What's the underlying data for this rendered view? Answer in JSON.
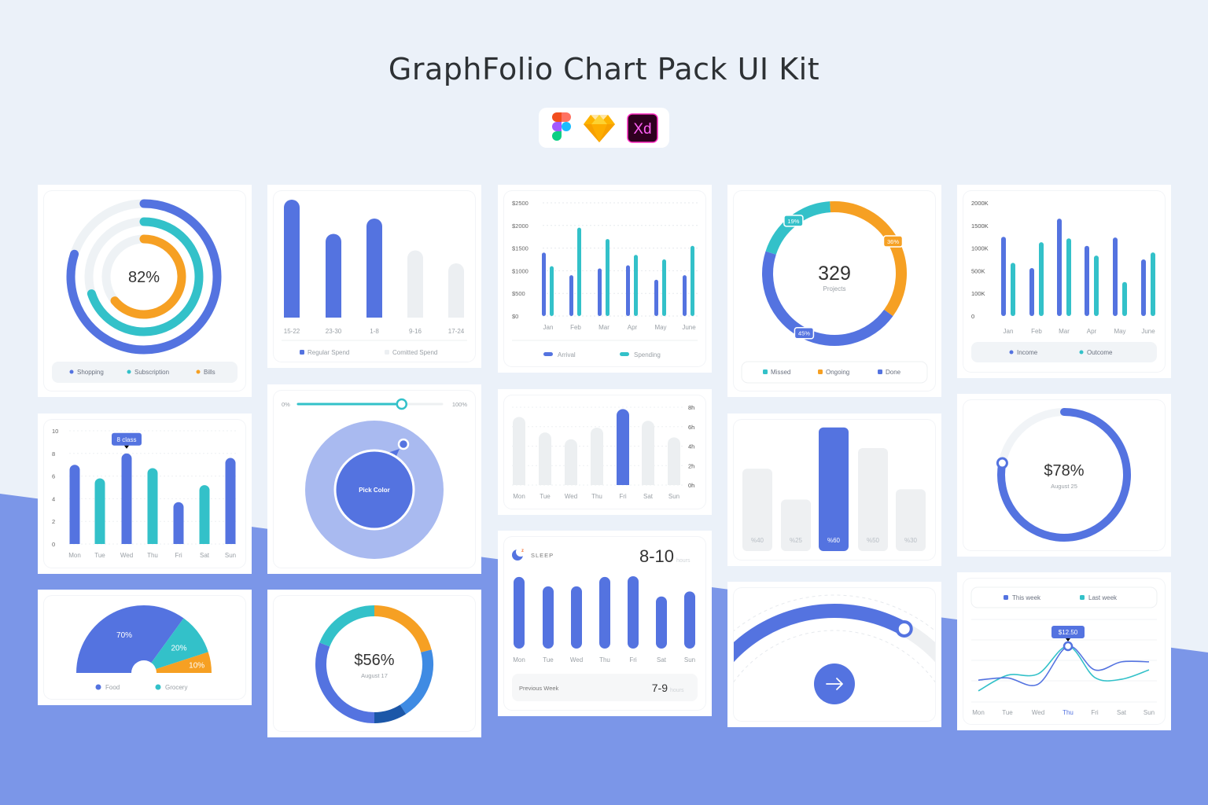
{
  "header": {
    "title": "GraphFolio Chart Pack UI Kit",
    "tool_icons": [
      "figma-icon",
      "sketch-icon",
      "adobe-xd-icon"
    ],
    "xd_label": "Xd"
  },
  "colors": {
    "blue": "#5473e0",
    "teal": "#33c1c9",
    "orange": "#f6a023",
    "track": "#eef1f4",
    "background": "#ebf1f9",
    "band": "#7b96e8"
  },
  "widgets": {
    "color_picker": {
      "min_label": "0%",
      "max_label": "100%",
      "slider_value_percent": 72,
      "button_label": "Pick Color"
    },
    "arc_gauge": {
      "value_fraction": 0.79,
      "button_icon": "arrow-right-icon"
    }
  },
  "chart_data": [
    {
      "type": "radial",
      "center_label": "82%",
      "series": [
        {
          "name": "Shopping",
          "value": 80,
          "color": "#5473e0"
        },
        {
          "name": "Subscription",
          "value": 70,
          "color": "#33c1c9"
        },
        {
          "name": "Bills",
          "value": 64,
          "color": "#f6a023"
        }
      ],
      "legend": "bottom"
    },
    {
      "type": "bar",
      "categories": [
        "15-22",
        "23-30",
        "1-8",
        "9-16",
        "17-24"
      ],
      "values": [
        100,
        71,
        84,
        57,
        46
      ],
      "bar_series": [
        0,
        0,
        0,
        1,
        1
      ],
      "series": [
        {
          "name": "Regular Spend",
          "color": "#5473e0"
        },
        {
          "name": "Comitted Spend",
          "color": "#eceff2"
        }
      ],
      "legend": "bottom"
    },
    {
      "type": "bar",
      "categories": [
        "Jan",
        "Feb",
        "Mar",
        "Apr",
        "May",
        "June"
      ],
      "ylim": [
        0,
        2500
      ],
      "yticks": [
        "$0",
        "$500",
        "$1000",
        "$1500",
        "$2000",
        "$2500"
      ],
      "grid": true,
      "series": [
        {
          "name": "Arrival",
          "values": [
            1400,
            900,
            1050,
            1120,
            800,
            900
          ],
          "color": "#5473e0"
        },
        {
          "name": "Spending",
          "values": [
            1100,
            1950,
            1700,
            1350,
            1250,
            1550
          ],
          "color": "#33c1c9"
        }
      ],
      "legend": "bottom"
    },
    {
      "type": "pie",
      "donut": true,
      "center_value": "329",
      "center_label": "Projects",
      "slices": [
        {
          "name": "Missed",
          "value": 19,
          "label": "19%",
          "color": "#33c1c9"
        },
        {
          "name": "Ongoing",
          "value": 36,
          "label": "36%",
          "color": "#f6a023"
        },
        {
          "name": "Done",
          "value": 45,
          "label": "45%",
          "color": "#5473e0"
        }
      ],
      "legend": "bottom"
    },
    {
      "type": "bar",
      "categories": [
        "Jan",
        "Feb",
        "Mar",
        "Apr",
        "May",
        "June"
      ],
      "yticks": [
        "0",
        "100K",
        "500K",
        "1000K",
        "1500K",
        "2000K"
      ],
      "ytick_values": [
        0,
        100,
        500,
        1000,
        1500,
        2000
      ],
      "unit": "K",
      "series": [
        {
          "name": "Income",
          "values": [
            1250,
            560,
            1650,
            1050,
            1235,
            750
          ],
          "color": "#5473e0"
        },
        {
          "name": "Outcome",
          "values": [
            675,
            1130,
            1215,
            835,
            300,
            905
          ],
          "color": "#33c1c9"
        }
      ],
      "legend": "bottom"
    },
    {
      "type": "bar",
      "categories": [
        "Mon",
        "Tue",
        "Wed",
        "Thu",
        "Fri",
        "Sat",
        "Sun"
      ],
      "ylim": [
        0,
        10
      ],
      "yticks": [
        "0",
        "2",
        "4",
        "6",
        "8",
        "10"
      ],
      "grid": true,
      "values": [
        7,
        5.8,
        8,
        6.7,
        3.7,
        5.2,
        7.6
      ],
      "bar_colors": [
        "#5473e0",
        "#33c1c9",
        "#5473e0",
        "#33c1c9",
        "#5473e0",
        "#33c1c9",
        "#5473e0"
      ],
      "annotation": "8 class",
      "highlight_index": 2
    },
    {
      "type": "bar",
      "categories": [
        "Mon",
        "Tue",
        "Wed",
        "Thu",
        "Fri",
        "Sat",
        "Sun"
      ],
      "ylim": [
        0,
        8
      ],
      "yticks": [
        "0h",
        "2h",
        "4h",
        "6h",
        "8h"
      ],
      "grid": true,
      "values": [
        6.6,
        5.0,
        4.3,
        5.5,
        7.4,
        6.2,
        4.5
      ],
      "highlight_index": 4
    },
    {
      "type": "bar",
      "categories": [
        "%40",
        "%25",
        "%60",
        "%50",
        "%30"
      ],
      "values": [
        40,
        25,
        60,
        50,
        30
      ],
      "highlight_index": 2
    },
    {
      "type": "pie",
      "progress_ring": true,
      "value": 78,
      "center_value": "$78%",
      "center_label": "August 25"
    },
    {
      "type": "pie",
      "half": true,
      "slices": [
        {
          "name": "Food",
          "value": 70,
          "label": "70%",
          "color": "#5473e0"
        },
        {
          "name": "Grocery",
          "value": 20,
          "label": "20%",
          "color": "#33c1c9"
        },
        {
          "value": 10,
          "label": "10%",
          "color": "#f6a023"
        }
      ],
      "legend": "bottom"
    },
    {
      "type": "pie",
      "donut": true,
      "center_value": "$56%",
      "center_label": "August 17",
      "slices": [
        {
          "value": 21,
          "color": "#f6a023"
        },
        {
          "value": 20,
          "color": "#3f8be3"
        },
        {
          "value": 9,
          "color": "#1c57a8"
        },
        {
          "value": 31,
          "color": "#5473e0"
        },
        {
          "value": 19,
          "color": "#33c1c9"
        }
      ]
    },
    {
      "type": "bar",
      "title": "SLEEP",
      "range_value": "8-10",
      "range_unit": "hours",
      "categories": [
        "Mon",
        "Tue",
        "Wed",
        "Thu",
        "Fri",
        "Sat",
        "Sun"
      ],
      "values": [
        99,
        86,
        86,
        99,
        100,
        72,
        79
      ],
      "footer": {
        "label": "Previous Week",
        "value": "7-9",
        "unit": "hours"
      }
    },
    {
      "type": "line",
      "categories": [
        "Mon",
        "Tue",
        "Wed",
        "Thu",
        "Fri",
        "Sat",
        "Sun"
      ],
      "series": [
        {
          "name": "This week",
          "values": [
            4.9,
            5.4,
            4.0,
            12.5,
            7.2,
            9.0,
            9.0
          ],
          "color": "#5473e0"
        },
        {
          "name": "Last week",
          "values": [
            2.5,
            6.0,
            6.3,
            12.5,
            5.5,
            5.1,
            7.2
          ],
          "color": "#33c1c9"
        }
      ],
      "annotation": "$12.50",
      "highlight_index": 3,
      "grid": true,
      "legend": "top"
    }
  ]
}
